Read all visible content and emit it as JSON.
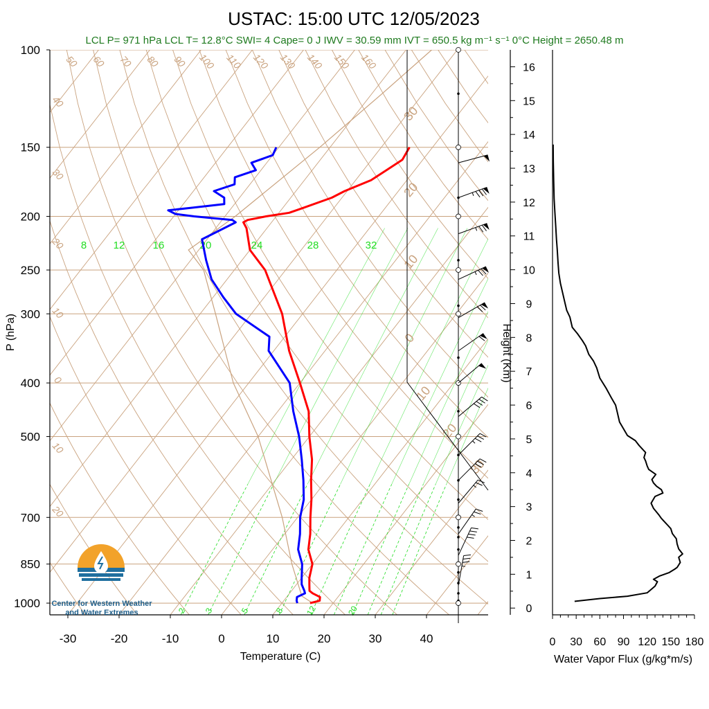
{
  "title": "USTAC: 15:00 UTC 12/05/2023",
  "info_line": "LCL P= 971 hPa  LCL T= 12.8°C  SWI= 4  Cape= 0 J  IWV = 30.59 mm  IVT = 650.5 kg m⁻¹ s⁻¹  0°C Height = 2650.48 m",
  "logo": {
    "line1": "Center for Western Weather",
    "line2": "and Water Extremes",
    "colors": {
      "sun": "#f2a22a",
      "water": "#1f6f9f"
    }
  },
  "colors": {
    "temperature": "#ff0000",
    "dewpoint": "#0000ff",
    "isotherm": "#c9a27e",
    "mixing_ratio": "#22dd22",
    "flux": "#000000"
  },
  "chart_data": [
    {
      "type": "line",
      "subtype": "skew-t log-p",
      "xlabel": "Temperature (C)",
      "ylabel": "P (hPa)",
      "x_ticks": [
        "-30",
        "-20",
        "-10",
        "0",
        "10",
        "20",
        "30",
        "40"
      ],
      "y_ticks": [
        "100",
        "150",
        "200",
        "250",
        "300",
        "400",
        "500",
        "700",
        "850",
        "1000"
      ],
      "y_scale": "log",
      "xlim": [
        -33,
        52
      ],
      "ylim": [
        1050,
        100
      ],
      "isotherm_labels": [
        "50",
        "60",
        "70",
        "80",
        "90",
        "100",
        "110",
        "120",
        "130",
        "140",
        "150",
        "160"
      ],
      "adiabat_labels_left": [
        "40",
        "30",
        "20",
        "10",
        "0",
        "10",
        "20"
      ],
      "adiabat_labels_right": [
        "30",
        "20",
        "10",
        "0",
        "10",
        "20",
        "30"
      ],
      "mixing_ratio_labels_top": [
        "8",
        "12",
        "16",
        "20",
        "24",
        "28",
        "32"
      ],
      "mixing_ratio_labels_bottom": [
        "2",
        "3",
        "5",
        "8",
        "12",
        "20"
      ],
      "series": [
        {
          "name": "Temperature",
          "p": [
            1000,
            990,
            975,
            960,
            950,
            925,
            900,
            850,
            800,
            750,
            700,
            650,
            600,
            550,
            500,
            450,
            400,
            350,
            300,
            250,
            230,
            210,
            205,
            203,
            200,
            197,
            193,
            185,
            180,
            172,
            165,
            158,
            150
          ],
          "t": [
            15.5,
            17.0,
            16.5,
            14.5,
            13.5,
            12.5,
            11.5,
            10.0,
            7.0,
            5.0,
            2.5,
            0.0,
            -3.0,
            -6.0,
            -10.0,
            -14.0,
            -20.0,
            -27.0,
            -34.0,
            -44.0,
            -50.0,
            -54.0,
            -55.5,
            -55.0,
            -52.0,
            -48.0,
            -46.0,
            -42.0,
            -40.5,
            -37.0,
            -35.5,
            -34.0,
            -34.5
          ]
        },
        {
          "name": "Dewpoint",
          "p": [
            1000,
            990,
            975,
            960,
            950,
            925,
            900,
            850,
            800,
            750,
            700,
            650,
            600,
            550,
            500,
            450,
            400,
            350,
            330,
            300,
            280,
            260,
            240,
            220,
            205,
            203,
            200,
            198,
            195,
            193,
            190,
            185,
            180,
            175,
            170,
            165,
            160,
            155,
            150
          ],
          "td": [
            13.0,
            12.5,
            12.0,
            13.0,
            12.5,
            11.0,
            10.0,
            8.0,
            5.0,
            3.0,
            0.5,
            -1.5,
            -4.5,
            -8.0,
            -12.0,
            -17.0,
            -22.0,
            -31.0,
            -33.0,
            -43.0,
            -48.0,
            -53.0,
            -57.0,
            -61.0,
            -57.0,
            -58.0,
            -66.0,
            -70.0,
            -72.0,
            -68.0,
            -62.0,
            -63.0,
            -66.0,
            -63.0,
            -64.0,
            -61.0,
            -63.0,
            -60.0,
            -60.5
          ]
        }
      ]
    },
    {
      "type": "line",
      "xlabel": "Water Vapor Flux (g/kg*m/s)",
      "ylabel": "Height (Km)",
      "x_ticks": [
        "0",
        "30",
        "60",
        "90",
        "120",
        "150",
        "180"
      ],
      "y_ticks": [
        "0",
        "1",
        "2",
        "3",
        "4",
        "5",
        "6",
        "7",
        "8",
        "9",
        "10",
        "11",
        "12",
        "13",
        "14",
        "15",
        "16"
      ],
      "xlim": [
        0,
        180
      ],
      "ylim": [
        -0.2,
        16.5
      ],
      "series": [
        {
          "name": "Flux",
          "x": [
            28,
            60,
            95,
            120,
            130,
            133,
            128,
            136,
            148,
            155,
            158,
            162,
            160,
            165,
            160,
            158,
            157,
            152,
            150,
            146,
            142,
            138,
            135,
            128,
            125,
            130,
            140,
            138,
            132,
            128,
            126,
            131,
            122,
            120,
            118,
            116,
            118,
            110,
            105,
            95,
            90,
            85,
            82,
            80,
            75,
            68,
            60,
            56,
            52,
            46,
            42,
            38,
            32,
            25,
            22,
            18,
            16,
            13,
            10,
            8,
            7,
            6,
            5,
            4,
            3,
            2,
            1.5,
            1,
            0.8
          ],
          "y": [
            0.2,
            0.28,
            0.35,
            0.45,
            0.65,
            0.78,
            0.85,
            0.95,
            1.05,
            1.15,
            1.2,
            1.35,
            1.5,
            1.6,
            1.75,
            1.9,
            2.05,
            2.2,
            2.35,
            2.45,
            2.55,
            2.65,
            2.75,
            2.95,
            3.1,
            3.3,
            3.4,
            3.5,
            3.6,
            3.7,
            3.8,
            3.95,
            4.1,
            4.2,
            4.35,
            4.45,
            4.6,
            4.8,
            4.95,
            5.1,
            5.3,
            5.5,
            5.8,
            6.0,
            6.2,
            6.5,
            6.8,
            7.1,
            7.3,
            7.5,
            7.75,
            7.9,
            8.1,
            8.3,
            8.6,
            8.8,
            9.0,
            9.3,
            9.6,
            9.9,
            10.2,
            10.6,
            10.9,
            11.3,
            11.7,
            12.1,
            12.6,
            13.2,
            13.7
          ]
        }
      ]
    }
  ],
  "wind_levels": [
    {
      "p": 160,
      "dir": 255,
      "speed": 50
    },
    {
      "p": 185,
      "dir": 250,
      "speed": 85
    },
    {
      "p": 215,
      "dir": 250,
      "speed": 75
    },
    {
      "p": 260,
      "dir": 245,
      "speed": 75
    },
    {
      "p": 305,
      "dir": 240,
      "speed": 70
    },
    {
      "p": 350,
      "dir": 235,
      "speed": 60
    },
    {
      "p": 400,
      "dir": 230,
      "speed": 50
    },
    {
      "p": 460,
      "dir": 230,
      "speed": 40
    },
    {
      "p": 540,
      "dir": 225,
      "speed": 35
    },
    {
      "p": 600,
      "dir": 225,
      "speed": 30
    },
    {
      "p": 660,
      "dir": 220,
      "speed": 25
    },
    {
      "p": 750,
      "dir": 215,
      "speed": 25
    },
    {
      "p": 820,
      "dir": 205,
      "speed": 40
    },
    {
      "p": 930,
      "dir": 190,
      "speed": 35
    }
  ]
}
